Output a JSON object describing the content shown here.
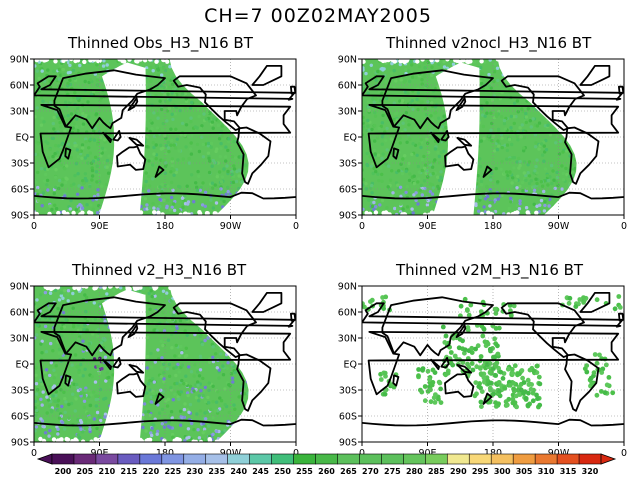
{
  "header": {
    "title": "CH=7   00Z02MAY2005"
  },
  "panels": [
    {
      "title": "Thinned Obs_H3_N16 BT",
      "coverage": "swath"
    },
    {
      "title": "Thinned v2nocl_H3_N16 BT",
      "coverage": "swath"
    },
    {
      "title": "Thinned v2_H3_N16 BT",
      "coverage": "swath"
    },
    {
      "title": "Thinned v2M_H3_N16 BT",
      "coverage": "sparse"
    }
  ],
  "axes": {
    "lat_labels": [
      "90N",
      "60N",
      "30N",
      "EQ",
      "30S",
      "60S",
      "90S"
    ],
    "lon_labels": [
      "0",
      "90E",
      "180",
      "90W",
      "0"
    ]
  },
  "colorbar": {
    "labels": [
      "200",
      "205",
      "210",
      "215",
      "220",
      "225",
      "230",
      "235",
      "240",
      "245",
      "250",
      "255",
      "260",
      "265",
      "270",
      "275",
      "280",
      "285",
      "290",
      "295",
      "300",
      "305",
      "310",
      "315",
      "320"
    ],
    "colors": [
      "#4a1058",
      "#6a2a78",
      "#7a4aa0",
      "#6a5cc0",
      "#6a78d8",
      "#7f95e2",
      "#94aee6",
      "#a6c0e8",
      "#8fd0d8",
      "#5cc8a8",
      "#40be7a",
      "#3ab43c",
      "#48b848",
      "#5cc05c",
      "#5cc05c",
      "#5cc05c",
      "#64c45c",
      "#78cc5c",
      "#f0e890",
      "#f8d878",
      "#f4c060",
      "#ef9c40",
      "#e97830",
      "#e45020",
      "#d82810"
    ]
  }
}
